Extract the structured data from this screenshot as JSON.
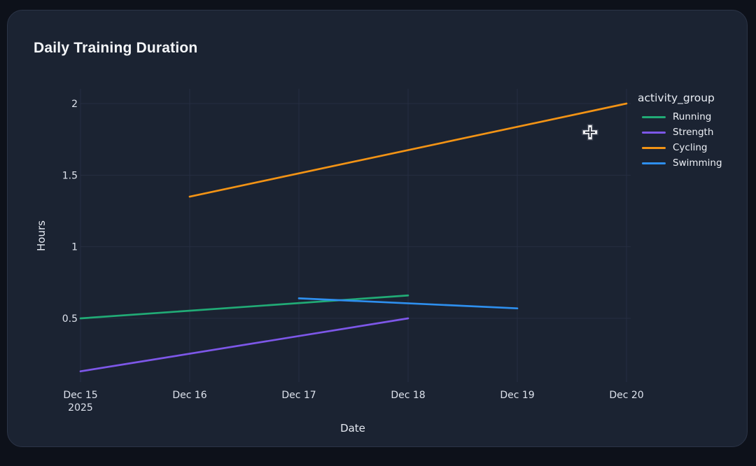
{
  "window": {
    "background": "#0d111a"
  },
  "card": {
    "background": "#1b2332",
    "border": "#2b3447"
  },
  "chart_data": {
    "type": "line",
    "title": "Daily Training Duration",
    "xlabel": "Date",
    "ylabel": "Hours",
    "legend_title": "activity_group",
    "legend_position": "right",
    "grid": true,
    "background": "#1b2332",
    "gridline_color": "#262e41",
    "tick_label_color": "#dde2ec",
    "x_ticks": [
      {
        "label": "Dec 15",
        "sub": "2025"
      },
      {
        "label": "Dec 16"
      },
      {
        "label": "Dec 17"
      },
      {
        "label": "Dec 18"
      },
      {
        "label": "Dec 19"
      },
      {
        "label": "Dec 20"
      }
    ],
    "y_ticks": [
      "0.5",
      "1",
      "1.5",
      "2"
    ],
    "ylim": [
      0.05,
      2.1
    ],
    "series": [
      {
        "name": "Running",
        "color": "#21ab76",
        "x": [
          "Dec 15",
          "Dec 18"
        ],
        "y": [
          0.5,
          0.66
        ]
      },
      {
        "name": "Strength",
        "color": "#7d57e8",
        "x": [
          "Dec 15",
          "Dec 18"
        ],
        "y": [
          0.13,
          0.5
        ]
      },
      {
        "name": "Cycling",
        "color": "#f29315",
        "x": [
          "Dec 16",
          "Dec 20"
        ],
        "y": [
          1.35,
          2.0
        ]
      },
      {
        "name": "Swimming",
        "color": "#2e8fee",
        "x": [
          "Dec 17",
          "Dec 19"
        ],
        "y": [
          0.64,
          0.57
        ]
      }
    ]
  },
  "cursor": {
    "type": "crosshair"
  }
}
